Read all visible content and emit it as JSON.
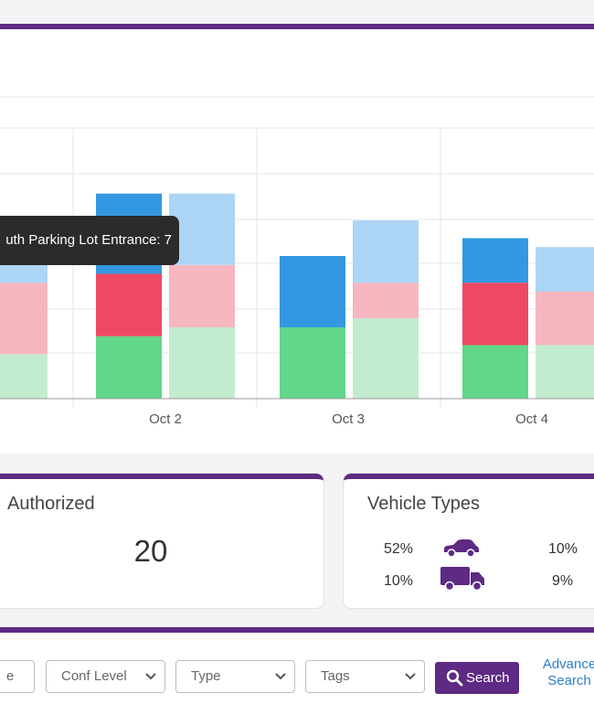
{
  "chart_data": {
    "type": "bar",
    "stacked": true,
    "categories": [
      "Oct 2",
      "Oct 3",
      "Oct 4"
    ],
    "series_order_bottom_to_top": [
      "green",
      "red",
      "blue"
    ],
    "groups": [
      {
        "category": "",
        "bars": [
          {
            "shade": "light",
            "segments": [
              5,
              8,
              7
            ]
          }
        ]
      },
      {
        "category": "Oct 2",
        "bars": [
          {
            "shade": "dark",
            "segments": [
              7,
              7,
              9
            ]
          },
          {
            "shade": "light",
            "segments": [
              8,
              7,
              8
            ]
          }
        ]
      },
      {
        "category": "Oct 3",
        "bars": [
          {
            "shade": "dark",
            "segments": [
              8,
              0,
              8
            ]
          },
          {
            "shade": "light",
            "segments": [
              9,
              4,
              7
            ]
          }
        ]
      },
      {
        "category": "Oct 4",
        "bars": [
          {
            "shade": "dark",
            "segments": [
              6,
              7,
              5
            ]
          },
          {
            "shade": "light",
            "segments": [
              6,
              6,
              5
            ]
          }
        ]
      }
    ],
    "colors": {
      "dark": [
        "#62d68a",
        "#ef4862",
        "#3398e1"
      ],
      "light": [
        "#c3eccf",
        "#f6b6c0",
        "#acd4f4"
      ]
    },
    "grid": true
  },
  "tooltip": {
    "text": "uth Parking Lot Entrance: 7"
  },
  "authorized": {
    "title": "Authorized",
    "count": "20"
  },
  "vehicle_types": {
    "title": "Vehicle Types",
    "rows": [
      {
        "left_pct": "52%",
        "icon": "car-icon",
        "right_pct": "10%"
      },
      {
        "left_pct": "10%",
        "icon": "truck-icon",
        "right_pct": "9%"
      }
    ]
  },
  "filters": {
    "partial_field_text": "e",
    "conf_level": "Conf Level",
    "type": "Type",
    "tags": "Tags",
    "search_label": "Search",
    "advanced_search_line1": "Advance",
    "advanced_search_line2": "Search"
  },
  "colors": {
    "brand": "#5e2a84",
    "link": "#2e7fc8"
  }
}
